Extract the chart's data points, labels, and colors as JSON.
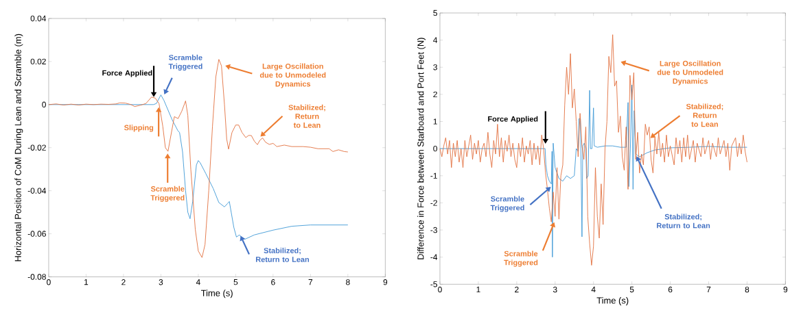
{
  "chart_data": [
    {
      "type": "line",
      "xlabel": "Time (s)",
      "ylabel": "Horizontal Position of CoM During Lean and Scramble (m)",
      "xlim": [
        0,
        9
      ],
      "ylim": [
        -0.08,
        0.04
      ],
      "xticks": [
        0,
        1,
        2,
        3,
        4,
        5,
        6,
        7,
        8,
        9
      ],
      "yticks": [
        -0.08,
        -0.06,
        -0.04,
        -0.02,
        0,
        0.02,
        0.04
      ],
      "grid": false,
      "series": [
        {
          "color": "#3d98d6",
          "x": [
            0,
            2.8,
            2.88,
            3.0,
            3.08,
            3.3,
            3.45,
            3.5,
            3.58,
            3.66,
            3.72,
            3.78,
            3.85,
            3.95,
            4.0,
            4.05,
            4.2,
            4.4,
            4.55,
            4.7,
            4.78,
            4.83,
            4.88,
            4.95,
            5.02,
            5.1,
            5.15,
            5.25,
            5.5,
            6.0,
            6.5,
            7.0,
            8.0
          ],
          "values": [
            0,
            0,
            0.0005,
            0.0045,
            0.002,
            -0.007,
            -0.012,
            -0.013,
            -0.022,
            -0.04,
            -0.05,
            -0.053,
            -0.045,
            -0.028,
            -0.026,
            -0.027,
            -0.032,
            -0.039,
            -0.0455,
            -0.0475,
            -0.046,
            -0.045,
            -0.05,
            -0.057,
            -0.0615,
            -0.0605,
            -0.0615,
            -0.0625,
            -0.0605,
            -0.0583,
            -0.0565,
            -0.0559,
            -0.0559
          ]
        },
        {
          "color": "#e2703f",
          "x": [
            0,
            0.2,
            0.4,
            0.6,
            0.8,
            1.0,
            1.2,
            1.4,
            1.6,
            1.8,
            1.9,
            2.05,
            2.2,
            2.3,
            2.45,
            2.6,
            2.75,
            2.85,
            2.95,
            3.05,
            3.12,
            3.19,
            3.25,
            3.36,
            3.46,
            3.56,
            3.66,
            3.72,
            3.8,
            3.92,
            4.0,
            4.1,
            4.18,
            4.28,
            4.38,
            4.47,
            4.55,
            4.62,
            4.7,
            4.76,
            4.81,
            4.9,
            5.0,
            5.08,
            5.17,
            5.27,
            5.35,
            5.42,
            5.5,
            5.58,
            5.65,
            5.72,
            5.8,
            5.9,
            6.0,
            6.1,
            6.3,
            6.5,
            6.8,
            7.0,
            7.2,
            7.5,
            7.6,
            7.75,
            7.9,
            8.0
          ],
          "values": [
            0,
            0.0003,
            -0.0002,
            0.0002,
            -0.0002,
            0.0002,
            0,
            0.0002,
            0.0001,
            0.0003,
            0.0008,
            0.0007,
            0,
            -0.0009,
            -0.0003,
            0.0005,
            0.0035,
            0.003,
            0.0005,
            -0.01,
            -0.02,
            -0.0217,
            -0.016,
            -0.0056,
            -0.0065,
            -0.003,
            0.0017,
            -0.005,
            -0.03,
            -0.058,
            -0.068,
            -0.071,
            -0.065,
            -0.04,
            -0.01,
            0.013,
            0.021,
            0.018,
            0.0,
            -0.016,
            -0.0207,
            -0.013,
            -0.0095,
            -0.0095,
            -0.013,
            -0.0153,
            -0.0143,
            -0.0144,
            -0.017,
            -0.0186,
            -0.0165,
            -0.0155,
            -0.0175,
            -0.0185,
            -0.018,
            -0.0195,
            -0.0188,
            -0.0195,
            -0.0195,
            -0.0198,
            -0.0205,
            -0.0205,
            -0.0218,
            -0.021,
            -0.0218,
            -0.022
          ]
        }
      ],
      "annotations": [
        {
          "text": "Force Applied",
          "x": 2.81,
          "y": 0.0035
        },
        {
          "text": "Scramble Triggered",
          "x": 3.09,
          "y": 0.0047
        },
        {
          "text": "Slipping",
          "x": 2.94,
          "y": -0.0012
        },
        {
          "text": "Scramble Triggered",
          "x": 3.18,
          "y": -0.0227
        },
        "Large Oscillation due to Unmodeled Dynamics",
        {
          "text": "Stabilized; Return to Lean",
          "x": 5.66,
          "y": -0.0149
        },
        {
          "text": "Stabilized; Return to Lean",
          "x": 5.13,
          "y": -0.0609
        }
      ]
    },
    {
      "type": "line",
      "xlabel": "Time (s)",
      "ylabel": "Difference in Force between Starboard and Port Feet (N)",
      "xlim": [
        0,
        9
      ],
      "ylim": [
        -5,
        5
      ],
      "xticks": [
        0,
        1,
        2,
        3,
        4,
        5,
        6,
        7,
        8,
        9
      ],
      "yticks": [
        -5,
        -4,
        -3,
        -2,
        -1,
        0,
        1,
        2,
        3,
        4,
        5
      ],
      "grid": false,
      "series": [
        {
          "color": "#3d98d6",
          "x": [
            0,
            2.74,
            2.76,
            2.8,
            2.85,
            2.9,
            2.92,
            2.93,
            2.95,
            3.0,
            3.1,
            3.2,
            3.3,
            3.4,
            3.5,
            3.55,
            3.6,
            3.62,
            3.66,
            3.7,
            3.72,
            3.76,
            3.8,
            3.82,
            3.86,
            3.9,
            3.92,
            3.96,
            4.0,
            4.02,
            4.1,
            4.3,
            4.5,
            4.7,
            4.85,
            4.9,
            4.92,
            4.96,
            5.0,
            5.03,
            5.06,
            5.1,
            5.2,
            5.4,
            5.6,
            6.0,
            6.5,
            7.0,
            7.5,
            8.0
          ],
          "values": [
            0,
            0,
            -0.6,
            -1.0,
            -1.2,
            -1.3,
            -0.1,
            -4.0,
            0.2,
            -0.7,
            -1.1,
            -1.2,
            -1.0,
            -1.1,
            -1.0,
            0.0,
            -0.1,
            1.1,
            1.1,
            -3.25,
            0.1,
            0.2,
            0.0,
            -1.1,
            -1.0,
            2.15,
            0.0,
            0.0,
            1.5,
            0.1,
            0.05,
            0.1,
            0.1,
            0.05,
            0.05,
            1.7,
            -1.4,
            0.0,
            2.35,
            -1.5,
            1.4,
            -0.2,
            -0.3,
            -0.15,
            -0.05,
            0.03,
            0.05,
            0.08,
            0.05,
            0.05
          ]
        },
        {
          "color": "#e2703f",
          "x": [
            0,
            0.05,
            0.1,
            0.15,
            0.2,
            0.25,
            0.3,
            0.35,
            0.4,
            0.45,
            0.5,
            0.55,
            0.6,
            0.65,
            0.7,
            0.8,
            0.85,
            0.9,
            0.95,
            1.0,
            1.05,
            1.1,
            1.15,
            1.2,
            1.25,
            1.3,
            1.35,
            1.4,
            1.45,
            1.5,
            1.55,
            1.6,
            1.65,
            1.7,
            1.75,
            1.8,
            1.85,
            1.9,
            1.95,
            2.0,
            2.05,
            2.1,
            2.15,
            2.2,
            2.25,
            2.3,
            2.35,
            2.4,
            2.45,
            2.5,
            2.55,
            2.6,
            2.65,
            2.7,
            2.75,
            2.8,
            2.85,
            2.9,
            2.95,
            3.0,
            3.05,
            3.1,
            3.15,
            3.2,
            3.25,
            3.3,
            3.35,
            3.4,
            3.45,
            3.5,
            3.55,
            3.6,
            3.65,
            3.7,
            3.75,
            3.8,
            3.85,
            3.9,
            3.95,
            4.0,
            4.05,
            4.1,
            4.15,
            4.2,
            4.25,
            4.3,
            4.35,
            4.4,
            4.45,
            4.5,
            4.55,
            4.6,
            4.65,
            4.7,
            4.75,
            4.8,
            4.85,
            4.9,
            4.95,
            5.0,
            5.05,
            5.1,
            5.15,
            5.2,
            5.25,
            5.3,
            5.35,
            5.4,
            5.45,
            5.5,
            5.55,
            5.6,
            5.65,
            5.7,
            5.75,
            5.8,
            5.85,
            5.9,
            5.95,
            6.0,
            6.1,
            6.15,
            6.2,
            6.25,
            6.3,
            6.35,
            6.4,
            6.45,
            6.5,
            6.6,
            6.65,
            6.7,
            6.8,
            6.85,
            6.9,
            7.0,
            7.05,
            7.1,
            7.2,
            7.25,
            7.3,
            7.4,
            7.45,
            7.5,
            7.55,
            7.6,
            7.7,
            7.75,
            7.8,
            7.85,
            7.9,
            7.95,
            8.0
          ],
          "values": [
            0,
            -0.3,
            0.1,
            0.4,
            -0.2,
            0.3,
            -0.7,
            0.2,
            -0.3,
            0.3,
            -0.5,
            0.0,
            -0.7,
            0.3,
            -0.3,
            0.5,
            -0.4,
            0.2,
            -0.2,
            0.3,
            -0.5,
            0.0,
            0.2,
            -0.3,
            0.6,
            -0.2,
            -0.7,
            0.3,
            -0.2,
            0.9,
            -0.3,
            0.4,
            -0.5,
            0.3,
            -0.1,
            0.5,
            -0.3,
            0.2,
            -0.4,
            -0.7,
            0.2,
            -0.3,
            0.4,
            -0.5,
            0.1,
            -0.2,
            0.3,
            -0.6,
            0.2,
            -0.4,
            0.1,
            -0.6,
            0.5,
            0.0,
            -0.9,
            -1.5,
            -2.2,
            -2.7,
            -1.6,
            -2.5,
            -0.7,
            -2.6,
            -1.0,
            -0.6,
            1.6,
            3.0,
            2.0,
            3.5,
            1.5,
            2.2,
            1.0,
            -0.3,
            1.3,
            0.1,
            -0.4,
            0.8,
            -2.5,
            -3.5,
            -4.3,
            -3.6,
            -0.7,
            -2.5,
            -3.3,
            -1.3,
            -2.8,
            0.0,
            1.0,
            3.4,
            2.8,
            4.2,
            2.3,
            2.5,
            0.6,
            1.2,
            -0.3,
            -0.8,
            0.8,
            -1.5,
            2.7,
            1.8,
            2.8,
            -0.4,
            0.6,
            -0.9,
            -0.2,
            -0.6,
            0.9,
            0.5,
            0.8,
            -0.4,
            -0.9,
            0.4,
            -0.2,
            0.6,
            -0.3,
            0.2,
            -0.5,
            0.5,
            -0.3,
            0.1,
            -0.6,
            0.4,
            -0.2,
            0.3,
            -0.5,
            0.4,
            -0.3,
            0.5,
            -0.4,
            0.3,
            -0.5,
            0.2,
            -0.3,
            0.4,
            -0.2,
            0.3,
            -0.4,
            0.2,
            -0.3,
            0.4,
            -0.2,
            0.3,
            -0.3,
            0.2,
            -0.8,
            0.1,
            0.4,
            -0.3,
            0.2,
            -0.2,
            0.5,
            -0.1,
            -0.5
          ]
        }
      ],
      "annotations": [
        {
          "text": "Force Applied",
          "x": 2.75,
          "y": 0.18
        },
        "Large Oscillation due to Unmodeled Dynamics",
        {
          "text": "Stabilized; Return to Lean",
          "x": 5.48,
          "y": 0.39
        },
        {
          "text": "Scramble Triggered",
          "x": 2.89,
          "y": -1.41
        },
        {
          "text": "Stabilized; Return to Lean",
          "x": 5.12,
          "y": -0.28
        },
        {
          "text": "Scramble Triggered",
          "x": 2.98,
          "y": -2.71
        }
      ]
    }
  ]
}
